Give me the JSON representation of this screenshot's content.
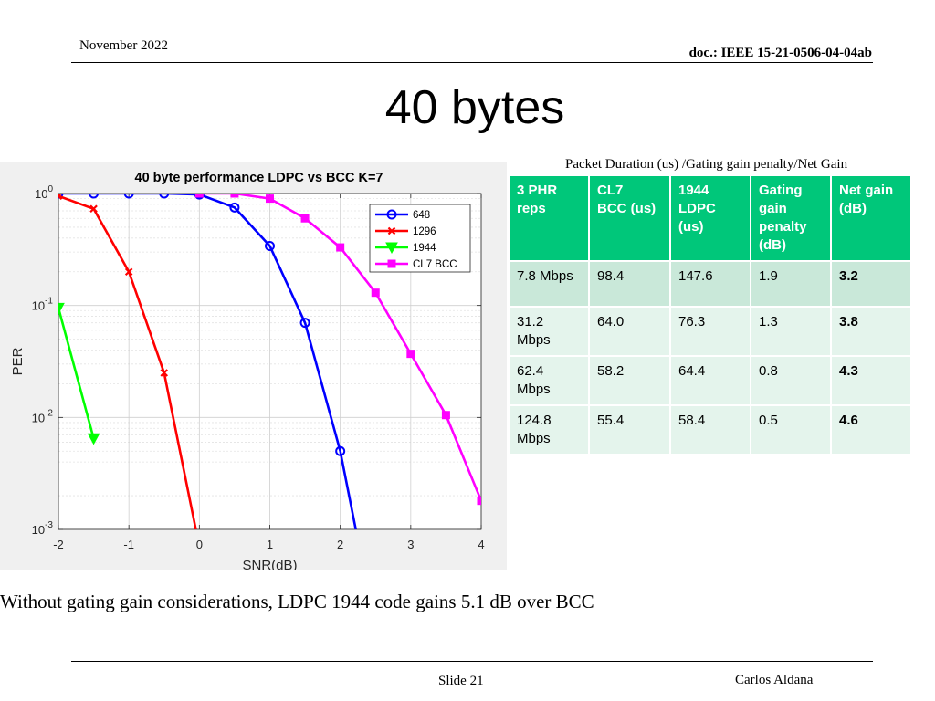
{
  "header": {
    "date": "November 2022",
    "doc": "doc.: IEEE 15-21-0506-04-04ab"
  },
  "title": "40 bytes",
  "table": {
    "caption": "Packet Duration (us) /Gating gain penalty/Net Gain",
    "headers": [
      [
        "3 PHR",
        "reps"
      ],
      [
        "CL7",
        "BCC (us)"
      ],
      [
        "1944",
        "LDPC",
        "(us)"
      ],
      [
        "Gating",
        "gain",
        "penalty",
        "(dB)"
      ],
      [
        "Net gain",
        "(dB)"
      ]
    ],
    "rows": [
      [
        [
          "7.8 Mbps"
        ],
        [
          "98.4"
        ],
        [
          "147.6"
        ],
        [
          "1.9"
        ],
        [
          "3.2"
        ]
      ],
      [
        [
          "31.2",
          "Mbps"
        ],
        [
          "64.0"
        ],
        [
          "76.3"
        ],
        [
          "1.3"
        ],
        [
          "3.8"
        ]
      ],
      [
        [
          "62.4",
          "Mbps"
        ],
        [
          "58.2"
        ],
        [
          "64.4"
        ],
        [
          "0.8"
        ],
        [
          "4.3"
        ]
      ],
      [
        [
          "124.8",
          "Mbps"
        ],
        [
          "55.4"
        ],
        [
          "58.4"
        ],
        [
          "0.5"
        ],
        [
          "4.6"
        ]
      ]
    ]
  },
  "note": "Without gating gain considerations, LDPC 1944 code gains 5.1 dB over BCC",
  "footer": {
    "slide": "Slide 21",
    "author": "Carlos Aldana"
  },
  "chart_data": {
    "type": "line",
    "title": "40 byte performance LDPC vs BCC K=7",
    "xlabel": "SNR(dB)",
    "ylabel": "PER",
    "xlim": [
      -2,
      4
    ],
    "ylim": [
      0.001,
      1
    ],
    "yscale": "log",
    "x_ticks": [
      "-2",
      "-1",
      "0",
      "1",
      "2",
      "3",
      "4"
    ],
    "y_ticks": [
      {
        "base": "10",
        "exp": "0"
      },
      {
        "base": "10",
        "exp": "-1"
      },
      {
        "base": "10",
        "exp": "-2"
      },
      {
        "base": "10",
        "exp": "-3"
      }
    ],
    "grid": true,
    "legend_position": "top-right",
    "series": [
      {
        "name": "648",
        "color": "#0000ff",
        "marker": "circle",
        "points": [
          [
            -2,
            1.0
          ],
          [
            -1.5,
            1.0
          ],
          [
            -1,
            1.0
          ],
          [
            -0.5,
            1.0
          ],
          [
            0,
            0.98
          ],
          [
            0.5,
            0.75
          ],
          [
            1,
            0.34
          ],
          [
            1.5,
            0.07
          ],
          [
            2,
            0.005
          ],
          [
            2.22,
            0.001
          ]
        ]
      },
      {
        "name": "1296",
        "color": "#ff0000",
        "marker": "x",
        "points": [
          [
            -2,
            0.95
          ],
          [
            -1.5,
            0.73
          ],
          [
            -1,
            0.2
          ],
          [
            -0.5,
            0.025
          ],
          [
            -0.05,
            0.001
          ]
        ]
      },
      {
        "name": "1944",
        "color": "#00ff00",
        "marker": "triangle",
        "points": [
          [
            -2,
            0.095
          ],
          [
            -1.5,
            0.0065
          ]
        ]
      },
      {
        "name": "CL7 BCC",
        "color": "#ff00ff",
        "marker": "square",
        "points": [
          [
            0,
            1.0
          ],
          [
            0.5,
            1.0
          ],
          [
            1,
            0.9
          ],
          [
            1.5,
            0.6
          ],
          [
            2,
            0.33
          ],
          [
            2.5,
            0.13
          ],
          [
            3,
            0.037
          ],
          [
            3.5,
            0.0105
          ],
          [
            4,
            0.0018
          ]
        ]
      }
    ]
  }
}
